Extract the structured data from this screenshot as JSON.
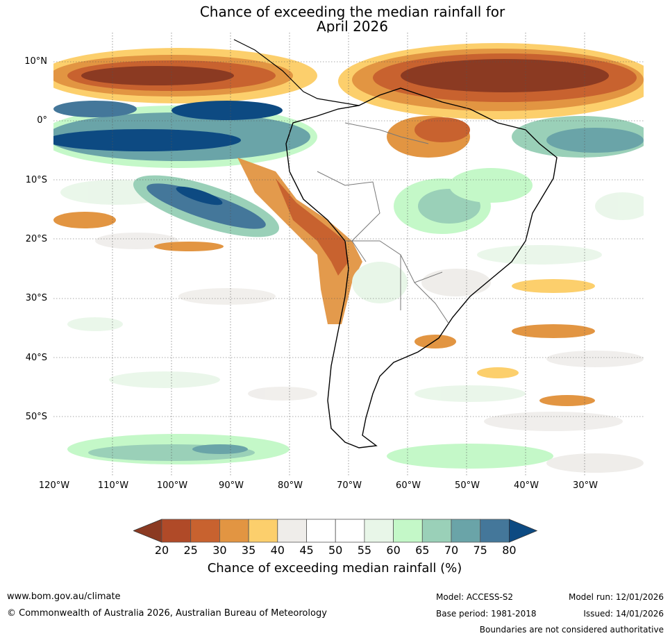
{
  "title_line1": "Chance of exceeding the median rainfall for",
  "title_line2": "April 2026",
  "lat_labels": [
    "10°N",
    "0°",
    "10°S",
    "20°S",
    "30°S",
    "40°S",
    "50°S"
  ],
  "lon_labels": [
    "120°W",
    "110°W",
    "100°W",
    "90°W",
    "80°W",
    "70°W",
    "60°W",
    "50°W",
    "40°W",
    "30°W"
  ],
  "colorbar": {
    "ticks": [
      "20",
      "25",
      "30",
      "35",
      "40",
      "45",
      "50",
      "55",
      "60",
      "65",
      "70",
      "75",
      "80"
    ],
    "colors": [
      "#8b3a22",
      "#b04a28",
      "#c8622f",
      "#e29542",
      "#fccf6c",
      "#efedea",
      "#ffffff",
      "#ffffff",
      "#e8f6e8",
      "#c4f8c8",
      "#9ad0b8",
      "#6aa4a8",
      "#44779a",
      "#0d4a82"
    ],
    "title": "Chance of exceeding median rainfall (%)"
  },
  "footer": {
    "website": "www.bom.gov.au/climate",
    "copyright": "© Commonwealth of Australia 2026, Australian Bureau of Meteorology",
    "model": "Model: ACCESS-S2",
    "base_period": "Base period: 1981-2018",
    "model_run": "Model run: 12/01/2026",
    "issued": "Issued: 14/01/2026",
    "disclaimer": "Boundaries are not considered authoritative"
  }
}
